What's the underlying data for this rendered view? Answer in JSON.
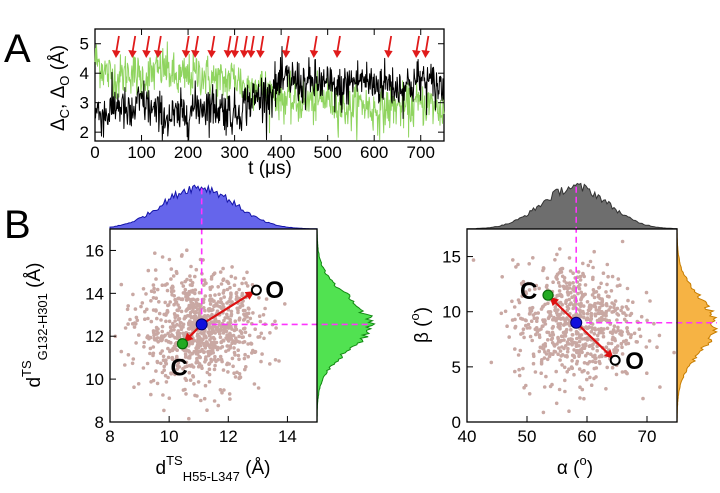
{
  "colors": {
    "black_trace": "#000000",
    "green_trace": "#8fd45f",
    "arrow": "#e01b1b",
    "scatter": "#c9a8a3",
    "hist_blue": "#4a4ae8",
    "hist_green": "#33dd33",
    "hist_black": "#333333",
    "hist_orange": "#f5a623",
    "center": "#1010dd",
    "closed": "#22aa22",
    "guide": "#ff33ff",
    "vector": "#dd1111"
  },
  "panel_labels": [
    "A",
    "B"
  ],
  "chart_data": [
    {
      "id": "A",
      "type": "line",
      "xlabel": "t (μs)",
      "ylabel": "ΔC, ΔO (Å)",
      "ylabel_parts": [
        "Δ",
        "C",
        ", Δ",
        "O",
        " (Å)"
      ],
      "xlim": [
        0,
        750
      ],
      "ylim": [
        1.7,
        5.5
      ],
      "xticks": [
        0,
        100,
        200,
        300,
        400,
        500,
        600,
        700
      ],
      "yticks": [
        2,
        3,
        4,
        5
      ],
      "series": [
        {
          "name": "ΔC",
          "color": "#000000",
          "t": [
            0,
            25,
            50,
            75,
            100,
            125,
            150,
            175,
            200,
            225,
            250,
            275,
            300,
            325,
            350,
            375,
            400,
            425,
            450,
            475,
            500,
            525,
            550,
            575,
            600,
            625,
            650,
            675,
            700,
            725,
            750
          ],
          "values": [
            2.7,
            2.6,
            3.0,
            2.5,
            3.1,
            2.7,
            2.5,
            2.5,
            2.7,
            2.9,
            2.9,
            2.8,
            2.6,
            3.0,
            3.2,
            3.3,
            3.7,
            3.8,
            3.6,
            3.7,
            3.6,
            3.4,
            3.7,
            3.8,
            3.6,
            3.7,
            3.5,
            3.6,
            3.8,
            3.6,
            3.5
          ]
        },
        {
          "name": "ΔO",
          "color": "#8fd45f",
          "t": [
            0,
            25,
            50,
            75,
            100,
            125,
            150,
            175,
            200,
            225,
            250,
            275,
            300,
            325,
            350,
            375,
            400,
            425,
            450,
            475,
            500,
            525,
            550,
            575,
            600,
            625,
            650,
            675,
            700,
            725,
            750
          ],
          "values": [
            4.5,
            4.0,
            3.8,
            4.1,
            3.8,
            4.0,
            4.2,
            3.8,
            3.9,
            4.0,
            3.8,
            3.7,
            3.9,
            3.5,
            3.6,
            3.3,
            3.2,
            3.0,
            3.1,
            3.0,
            3.2,
            2.9,
            2.8,
            3.0,
            2.7,
            2.8,
            2.9,
            2.8,
            3.0,
            2.9,
            2.7
          ]
        }
      ],
      "event_markers_t": [
        45,
        80,
        110,
        135,
        195,
        215,
        250,
        285,
        300,
        320,
        335,
        355,
        410,
        470,
        520,
        630,
        690,
        710
      ]
    },
    {
      "id": "B-left",
      "type": "scatter",
      "xlabel_parts": [
        "d",
        "TS",
        "H55-L347",
        " (Å)"
      ],
      "ylabel_parts": [
        "d",
        "TS",
        "G132-H301",
        " (Å)"
      ],
      "xlabel": "dTS H55-L347 (Å)",
      "ylabel": "dTS G132-H301 (Å)",
      "xlim": [
        8,
        15
      ],
      "ylim": [
        8,
        17
      ],
      "xticks": [
        8,
        10,
        12,
        14
      ],
      "yticks": [
        8,
        10,
        12,
        14,
        16
      ],
      "scatter_center": [
        11.0,
        12.3
      ],
      "scatter_spread": [
        1.0,
        1.25
      ],
      "mean_point": [
        11.1,
        12.55
      ],
      "open_point": [
        12.95,
        14.15
      ],
      "closed_point": [
        10.45,
        11.65
      ],
      "open_label": "O",
      "closed_label": "C",
      "top_histogram": {
        "peak": 11.0,
        "width": 1.2
      },
      "right_histogram": {
        "peak": 12.6,
        "width": 1.25
      }
    },
    {
      "id": "B-right",
      "type": "scatter",
      "xlabel_parts": [
        "α (",
        "o",
        ")"
      ],
      "ylabel_parts": [
        "β (",
        "o",
        ")"
      ],
      "xlabel": "α (o)",
      "ylabel": "β (o)",
      "xlim": [
        40,
        75
      ],
      "ylim": [
        0,
        17.5
      ],
      "xticks": [
        40,
        50,
        60,
        70
      ],
      "yticks": [
        0,
        5,
        10,
        15
      ],
      "scatter_center": [
        58.0,
        9.0
      ],
      "scatter_spread": [
        5.0,
        2.7
      ],
      "mean_point": [
        58.2,
        9.0
      ],
      "open_point": [
        64.7,
        5.6
      ],
      "closed_point": [
        53.5,
        11.5
      ],
      "open_label": "O",
      "closed_label": "C",
      "top_histogram": {
        "peak": 58.0,
        "width": 5.5
      },
      "right_histogram": {
        "peak": 8.8,
        "width": 2.5
      }
    }
  ]
}
